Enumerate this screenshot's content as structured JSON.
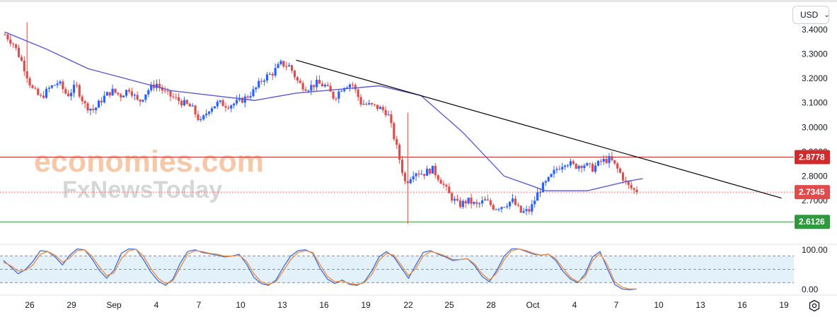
{
  "header": {
    "currency": "USD",
    "currency_chevron_icon": "chevron-down-icon"
  },
  "footer": {
    "settings_icon": "gear-icon"
  },
  "watermark": {
    "line1": "economies.com",
    "line2": "FxNewsToday"
  },
  "colors": {
    "up": "#2962ff",
    "down": "#e04b4b",
    "ma": "#5b5bd6",
    "resistance": "#d22a2a",
    "support": "#2e9a3e",
    "trend": "#000000",
    "stoch_k": "#3d6de0",
    "stoch_d": "#f08a3c",
    "stoch_band": "#e3f1fb",
    "current_price": "#e04b4b"
  },
  "chart_data": [
    {
      "type": "candlestick",
      "x_tick_labels": [
        "26",
        "29",
        "Sep",
        "4",
        "7",
        "10",
        "13",
        "16",
        "19",
        "22",
        "25",
        "28",
        "Oct",
        "4",
        "7",
        "10",
        "13",
        "16",
        "19"
      ],
      "y_tick_labels": [
        "3.4000",
        "3.3000",
        "3.2000",
        "3.1000",
        "3.0000",
        "2.9000",
        "2.8000",
        "2.7000"
      ],
      "ylim": [
        2.58,
        3.46
      ],
      "close_path": [
        3.38,
        3.34,
        3.26,
        3.16,
        3.12,
        3.16,
        3.185,
        3.13,
        3.17,
        3.09,
        3.07,
        3.12,
        3.15,
        3.13,
        3.16,
        3.1,
        3.15,
        3.18,
        3.14,
        3.12,
        3.1,
        3.08,
        3.02,
        3.08,
        3.1,
        3.09,
        3.1,
        3.12,
        3.15,
        3.2,
        3.22,
        3.26,
        3.25,
        3.18,
        3.16,
        3.18,
        3.17,
        3.12,
        3.17,
        3.18,
        3.1,
        3.09,
        3.08,
        3.06,
        2.92,
        2.77,
        2.82,
        2.81,
        2.83,
        2.78,
        2.72,
        2.68,
        2.7,
        2.68,
        2.7,
        2.67,
        2.68,
        2.7,
        2.65,
        2.66,
        2.74,
        2.78,
        2.83,
        2.86,
        2.84,
        2.85,
        2.83,
        2.86,
        2.87,
        2.82,
        2.76,
        2.7345
      ],
      "moving_average": [
        {
          "x": "Aug 23",
          "y": 3.39
        },
        {
          "x": "Aug 26",
          "y": 3.32
        },
        {
          "x": "Aug 29",
          "y": 3.24
        },
        {
          "x": "Sep 4",
          "y": 3.15
        },
        {
          "x": "Sep 10",
          "y": 3.11
        },
        {
          "x": "Sep 13",
          "y": 3.14
        },
        {
          "x": "Sep 19",
          "y": 3.17
        },
        {
          "x": "Sep 22",
          "y": 3.13
        },
        {
          "x": "Sep 25",
          "y": 2.98
        },
        {
          "x": "Sep 28",
          "y": 2.8
        },
        {
          "x": "Oct 1",
          "y": 2.74
        },
        {
          "x": "Oct 4",
          "y": 2.74
        },
        {
          "x": "Oct 7",
          "y": 2.78
        },
        {
          "x": "Oct 8",
          "y": 2.79
        }
      ],
      "trendline": [
        {
          "x": "Sep 13",
          "y": 3.275
        },
        {
          "x": "Oct 18",
          "y": 2.71
        }
      ],
      "horizontal_levels": [
        {
          "label": "2.8778",
          "value": 2.8778,
          "style": "solid",
          "color_key": "resistance"
        },
        {
          "label": "2.7345",
          "value": 2.7345,
          "style": "dotted",
          "color_key": "current_price"
        },
        {
          "label": "2.6126",
          "value": 2.6126,
          "style": "solid",
          "color_key": "support"
        }
      ]
    },
    {
      "type": "line",
      "name": "stochastic",
      "y_tick_labels": [
        "100.00",
        "0.00"
      ],
      "ylim": [
        0,
        100
      ],
      "band": [
        20,
        80
      ],
      "series": [
        {
          "key": "stoch_k",
          "values": [
            70,
            55,
            40,
            50,
            68,
            92,
            90,
            78,
            60,
            82,
            96,
            94,
            74,
            48,
            30,
            48,
            86,
            96,
            95,
            72,
            44,
            24,
            14,
            28,
            64,
            90,
            94,
            88,
            85,
            82,
            78,
            80,
            84,
            62,
            32,
            18,
            14,
            26,
            55,
            80,
            92,
            94,
            86,
            52,
            28,
            18,
            26,
            16,
            14,
            22,
            46,
            78,
            90,
            78,
            54,
            30,
            60,
            88,
            92,
            84,
            78,
            70,
            72,
            74,
            58,
            34,
            22,
            48,
            80,
            96,
            96,
            90,
            84,
            82,
            84,
            70,
            45,
            28,
            20,
            40,
            78,
            90,
            52,
            16,
            6,
            4,
            6
          ]
        },
        {
          "key": "stoch_d",
          "values": [
            66,
            58,
            46,
            48,
            60,
            84,
            90,
            82,
            66,
            76,
            92,
            94,
            80,
            56,
            36,
            42,
            74,
            92,
            95,
            80,
            52,
            30,
            18,
            24,
            54,
            84,
            92,
            90,
            86,
            84,
            80,
            80,
            82,
            68,
            40,
            22,
            16,
            22,
            46,
            72,
            88,
            92,
            88,
            60,
            34,
            22,
            24,
            18,
            16,
            20,
            38,
            70,
            86,
            82,
            60,
            36,
            52,
            80,
            90,
            86,
            80,
            72,
            72,
            74,
            62,
            40,
            26,
            42,
            72,
            92,
            96,
            92,
            86,
            82,
            84,
            74,
            52,
            32,
            22,
            34,
            70,
            86,
            60,
            22,
            10,
            6,
            6
          ]
        }
      ]
    }
  ]
}
